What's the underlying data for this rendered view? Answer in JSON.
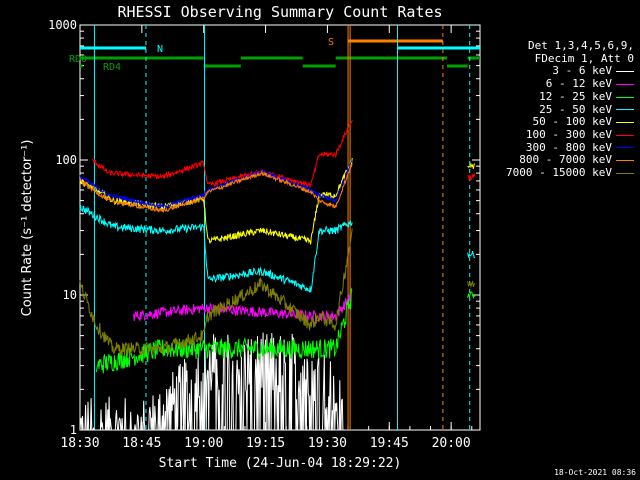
{
  "chart_data": {
    "type": "line",
    "title": "RHESSI Observing Summary Count Rates",
    "xlabel": "Start Time (24-Jun-04 18:29:22)",
    "ylabel": "Count Rate (s⁻¹ detector⁻¹)",
    "yscale": "log",
    "ylim": [
      1,
      1000
    ],
    "xlim_min": [
      0,
      97
    ],
    "y_ticks": [
      "1",
      "10",
      "100",
      "1000"
    ],
    "x_ticks": [
      {
        "min": 0,
        "label": "18:30"
      },
      {
        "min": 15,
        "label": "18:45"
      },
      {
        "min": 30,
        "label": "19:00"
      },
      {
        "min": 45,
        "label": "19:15"
      },
      {
        "min": 60,
        "label": "19:30"
      },
      {
        "min": 75,
        "label": "19:45"
      },
      {
        "min": 90,
        "label": "20:00"
      }
    ],
    "legend_header": [
      "Det 1,3,4,5,6,9,",
      "FDecim 1, Att 0"
    ],
    "series": [
      {
        "name": "3 - 6 keV",
        "color": "#ffffff",
        "base": [
          [
            0,
            1
          ],
          [
            16,
            1
          ],
          [
            32,
            3
          ],
          [
            48,
            3
          ],
          [
            56,
            3
          ],
          [
            62,
            2
          ],
          [
            64,
            1
          ]
        ],
        "noise": 0.5,
        "lowcut": true
      },
      {
        "name": "6 - 12 keV",
        "color": "#ff00ff",
        "base": [
          [
            13,
            7
          ],
          [
            30,
            8
          ],
          [
            31,
            8
          ],
          [
            56,
            7
          ],
          [
            62,
            7
          ],
          [
            66,
            10
          ]
        ],
        "noise": 0.08
      },
      {
        "name": "12 - 25 keV",
        "color": "#00ff00",
        "base": [
          [
            4,
            3
          ],
          [
            20,
            4
          ],
          [
            30,
            4
          ],
          [
            31,
            4
          ],
          [
            56,
            4
          ],
          [
            62,
            4
          ],
          [
            66,
            10
          ]
        ],
        "noise": 0.15
      },
      {
        "name": "25 - 50 keV",
        "color": "#00ffff",
        "base": [
          [
            0,
            45
          ],
          [
            4,
            38
          ],
          [
            8,
            32
          ],
          [
            20,
            30
          ],
          [
            30,
            32
          ],
          [
            31,
            13
          ],
          [
            44,
            15
          ],
          [
            56,
            11
          ],
          [
            58,
            30
          ],
          [
            62,
            30
          ],
          [
            66,
            35
          ]
        ],
        "noise": 0.06
      },
      {
        "name": "50 - 100 keV",
        "color": "#ffff00",
        "base": [
          [
            0,
            70
          ],
          [
            4,
            60
          ],
          [
            8,
            50
          ],
          [
            20,
            45
          ],
          [
            30,
            52
          ],
          [
            31,
            25
          ],
          [
            44,
            30
          ],
          [
            56,
            25
          ],
          [
            58,
            55
          ],
          [
            62,
            55
          ],
          [
            66,
            100
          ]
        ],
        "noise": 0.05
      },
      {
        "name": "100 - 300 keV",
        "color": "#ff0000",
        "base": [
          [
            3,
            100
          ],
          [
            7,
            80
          ],
          [
            20,
            75
          ],
          [
            30,
            95
          ],
          [
            31,
            65
          ],
          [
            44,
            82
          ],
          [
            56,
            65
          ],
          [
            58,
            110
          ],
          [
            62,
            110
          ],
          [
            66,
            200
          ]
        ],
        "noise": 0.04
      },
      {
        "name": "300 - 800 keV",
        "color": "#0000ff",
        "base": [
          [
            0,
            75
          ],
          [
            7,
            55
          ],
          [
            20,
            45
          ],
          [
            30,
            55
          ],
          [
            31,
            60
          ],
          [
            44,
            82
          ],
          [
            56,
            60
          ],
          [
            58,
            55
          ],
          [
            62,
            50
          ],
          [
            66,
            100
          ]
        ],
        "noise": 0.03
      },
      {
        "name": "800 - 7000 keV",
        "color": "#ff8000",
        "base": [
          [
            0,
            70
          ],
          [
            7,
            50
          ],
          [
            20,
            42
          ],
          [
            30,
            52
          ],
          [
            31,
            58
          ],
          [
            44,
            80
          ],
          [
            56,
            58
          ],
          [
            58,
            50
          ],
          [
            62,
            45
          ],
          [
            66,
            95
          ]
        ],
        "noise": 0.03
      },
      {
        "name": "7000 - 15000 keV",
        "color": "#808000",
        "base": [
          [
            0,
            12
          ],
          [
            4,
            6
          ],
          [
            8,
            4
          ],
          [
            20,
            4
          ],
          [
            30,
            5
          ],
          [
            31,
            7
          ],
          [
            44,
            12
          ],
          [
            56,
            6
          ],
          [
            58,
            7
          ],
          [
            62,
            6
          ],
          [
            66,
            30
          ]
        ],
        "noise": 0.1
      }
    ],
    "tail_segment": {
      "start": 94,
      "end": 96,
      "values": {
        "100 - 300 keV": 75,
        "50 - 100 keV": 90,
        "25 - 50 keV": 20,
        "12 - 25 keV": 10,
        "7000 - 15000 keV": 12
      }
    },
    "markers": {
      "saa_label": "S",
      "night_label": "N",
      "rd0_label": "RD0",
      "rd4_label": "RD4"
    }
  },
  "footer": "18-Oct-2021 08:36"
}
